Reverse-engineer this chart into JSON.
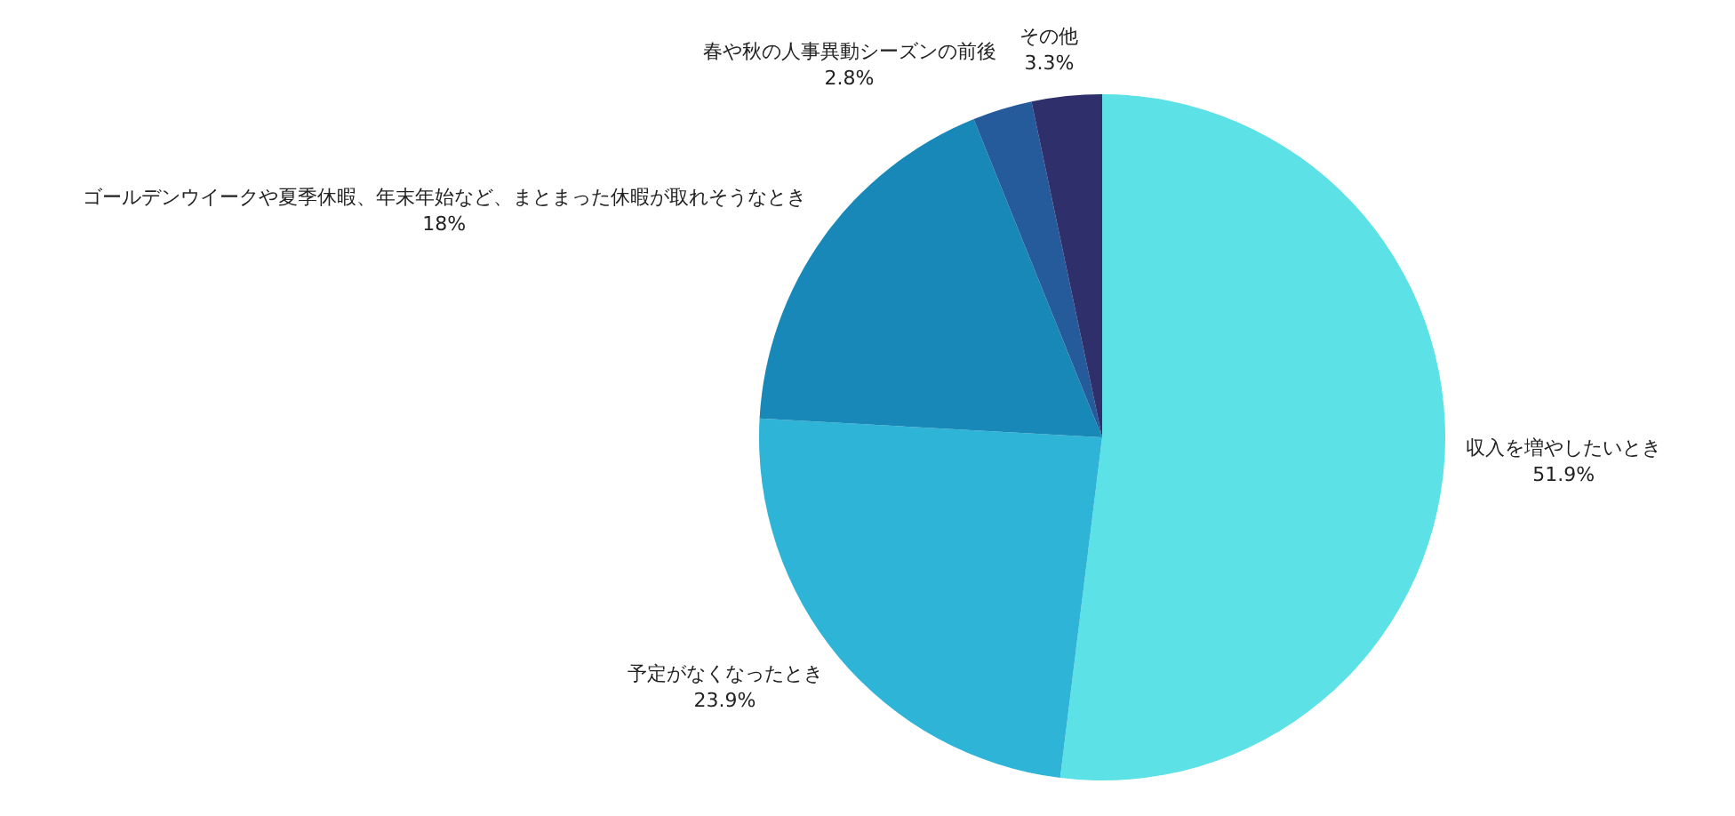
{
  "chart_data": {
    "type": "pie",
    "categories": [
      "収入を増やしたいとき",
      "予定がなくなったとき",
      "ゴールデンウイークや夏季休暇、年末年始など、まとまった休暇が取れそうなとき",
      "春や秋の人事異動シーズンの前後",
      "その他"
    ],
    "values": [
      51.9,
      23.9,
      18,
      2.8,
      3.3
    ],
    "colors": [
      "#5ce1e6",
      "#2db4d6",
      "#1888b8",
      "#265b9b",
      "#2e2f6b"
    ],
    "value_labels": [
      "51.9%",
      "23.9%",
      "18%",
      "2.8%",
      "3.3%"
    ]
  }
}
